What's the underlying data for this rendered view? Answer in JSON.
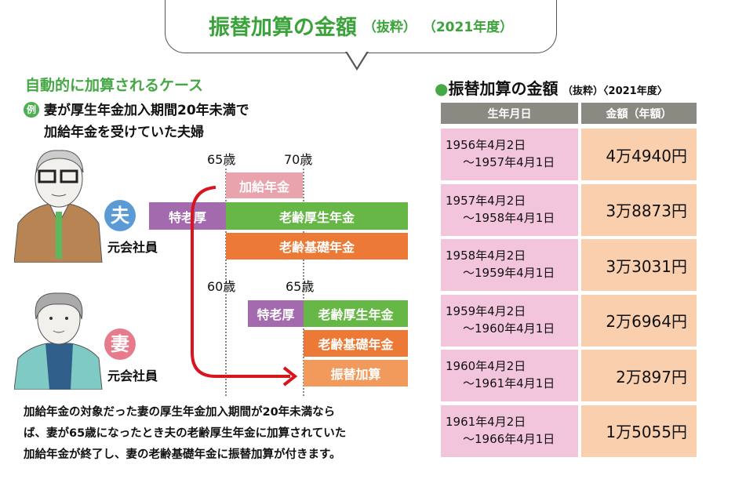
{
  "header": {
    "title": "振替加算の金額",
    "note1": "（抜粋）",
    "note2": "（2021年度）"
  },
  "case": {
    "heading": "自動的に加算されるケース",
    "example_badge": "例",
    "example_line1": "妻が厚生年金加入期間20年未満で",
    "example_line2": "加給年金を受けていた夫婦"
  },
  "husband": {
    "label": "夫",
    "role": "元会社員",
    "age_a": "65歳",
    "age_b": "70歳",
    "bars": {
      "kakyu": "加給年金",
      "tokurou": "特老厚",
      "kousei": "老齢厚生年金",
      "kiso": "老齢基礎年金"
    }
  },
  "wife": {
    "label": "妻",
    "role": "元会社員",
    "age_a": "60歳",
    "age_b": "65歳",
    "bars": {
      "tokurou": "特老厚",
      "kousei": "老齢厚生年金",
      "kiso": "老齢基礎年金",
      "furikae": "振替加算"
    }
  },
  "description": {
    "line1": "加給年金の対象だった妻の厚生年金加入期間が20年未満なら",
    "line2": "ば、妻が65歳になったとき夫の老齢厚生年金に加算されていた",
    "line3": "加給年金が終了し、妻の老齢基礎年金に振替加算が付きます。"
  },
  "table": {
    "title": "振替加算の金額",
    "note1": "（抜粋）",
    "note2": "〈2021年度〉",
    "col1": "生年月日",
    "col2": "金額（年額）",
    "rows": [
      {
        "from": "1956年4月2日",
        "to": "～1957年4月1日",
        "amount": "4万4940円"
      },
      {
        "from": "1957年4月2日",
        "to": "～1958年4月1日",
        "amount": "3万8873円"
      },
      {
        "from": "1958年4月2日",
        "to": "～1959年4月1日",
        "amount": "3万3031円"
      },
      {
        "from": "1959年4月2日",
        "to": "～1960年4月1日",
        "amount": "2万6964円"
      },
      {
        "from": "1960年4月2日",
        "to": "～1961年4月1日",
        "amount": "2万897円"
      },
      {
        "from": "1961年4月2日",
        "to": "～1966年4月1日",
        "amount": "1万5055円"
      }
    ]
  },
  "colors": {
    "green": "#3aa43a",
    "purple": "#a46aae",
    "bar_green": "#66b746",
    "orange": "#ec7a36",
    "pink": "#e9a3ac",
    "light_orange": "#f29a5c",
    "arrow": "#d9141e"
  }
}
